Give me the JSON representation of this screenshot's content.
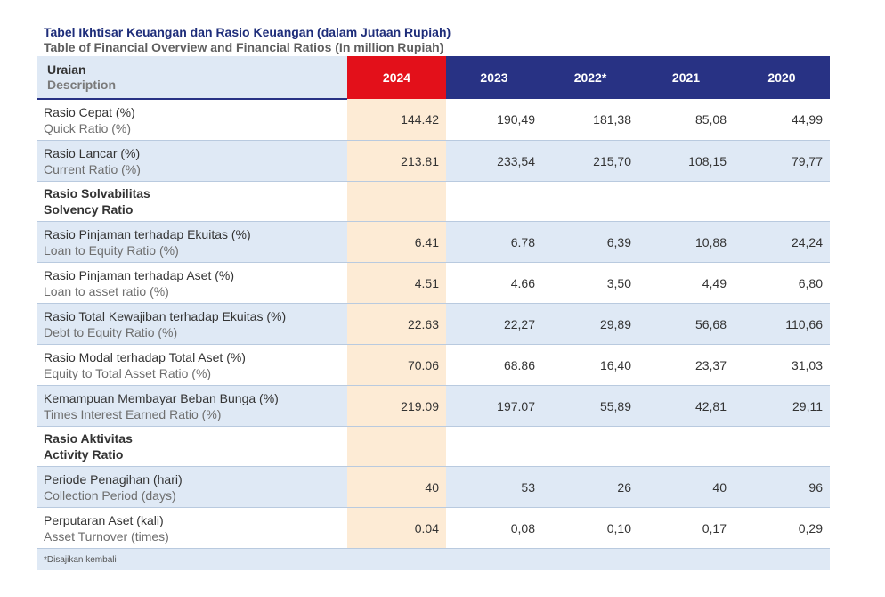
{
  "title_id": "Tabel Ikhtisar Keuangan dan Rasio Keuangan (dalam Jutaan Rupiah)",
  "title_en": "Table of Financial Overview and Financial Ratios (In million Rupiah)",
  "header": {
    "desc_id": "Uraian",
    "desc_en": "Description",
    "years": [
      "2024",
      "2023",
      "2022*",
      "2021",
      "2020"
    ]
  },
  "rows": [
    {
      "id": "Rasio Cepat (%)",
      "en": "Quick Ratio (%)",
      "values": [
        "144.42",
        "190,49",
        "181,38",
        "85,08",
        "44,99"
      ]
    },
    {
      "id": "Rasio Lancar (%)",
      "en": "Current Ratio (%)",
      "values": [
        "213.81",
        "233,54",
        "215,70",
        "108,15",
        "79,77"
      ]
    },
    {
      "id": "Rasio Solvabilitas",
      "en": "Solvency Ratio"
    },
    {
      "id": "Rasio Pinjaman terhadap Ekuitas (%)",
      "en": "Loan to Equity Ratio (%)",
      "values": [
        "6.41",
        "6.78",
        "6,39",
        "10,88",
        "24,24"
      ]
    },
    {
      "id": "Rasio Pinjaman terhadap Aset (%)",
      "en": "Loan to asset ratio (%)",
      "values": [
        "4.51",
        "4.66",
        "3,50",
        "4,49",
        "6,80"
      ]
    },
    {
      "id": "Rasio Total Kewajiban terhadap Ekuitas (%)",
      "en": "Debt to Equity Ratio (%)",
      "values": [
        "22.63",
        "22,27",
        "29,89",
        "56,68",
        "110,66"
      ]
    },
    {
      "id": "Rasio Modal terhadap Total Aset (%)",
      "en": "Equity to Total Asset Ratio (%)",
      "values": [
        "70.06",
        "68.86",
        "16,40",
        "23,37",
        "31,03"
      ]
    },
    {
      "id": "Kemampuan Membayar Beban Bunga (%)",
      "en": "Times Interest Earned Ratio (%)",
      "values": [
        "219.09",
        "197.07",
        "55,89",
        "42,81",
        "29,11"
      ]
    },
    {
      "id": "Rasio Aktivitas",
      "en": "Activity Ratio"
    },
    {
      "id": "Periode Penagihan (hari)",
      "en": "Collection Period (days)",
      "values": [
        "40",
        "53",
        "26",
        "40",
        "96"
      ]
    },
    {
      "id": "Perputaran Aset (kali)",
      "en": "Asset Turnover (times)",
      "values": [
        "0.04",
        "0,08",
        "0,10",
        "0,17",
        "0,29"
      ]
    }
  ],
  "footnote": "*Disajikan kembali",
  "colors": {
    "header_blue": "#283284",
    "highlight_red": "#e3101a",
    "row_blue": "#dfe9f5",
    "col_2024": "#fdebd5",
    "title_blue": "#1e2d7a"
  }
}
